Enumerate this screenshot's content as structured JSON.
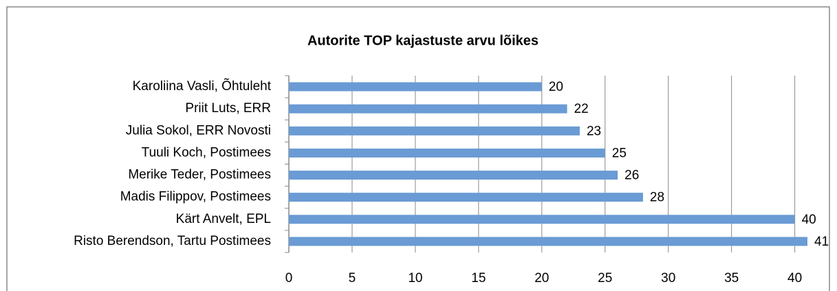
{
  "chart_data": {
    "type": "bar",
    "orientation": "horizontal",
    "title": "Autorite TOP kajastuste arvu lõikes",
    "categories": [
      "Karoliina Vasli, Õhtuleht",
      "Priit Luts, ERR",
      "Julia Sokol, ERR Novosti",
      "Tuuli Koch, Postimees",
      "Merike Teder, Postimees",
      "Madis Filippov, Postimees",
      "Kärt Anvelt, EPL",
      "Risto Berendson, Tartu Postimees"
    ],
    "values": [
      20,
      22,
      23,
      25,
      26,
      28,
      40,
      41
    ],
    "color": "#6a9bd4",
    "xlim": [
      0,
      41
    ],
    "xticks": [
      0,
      5,
      10,
      15,
      20,
      25,
      30,
      35,
      40
    ],
    "grid": true
  }
}
